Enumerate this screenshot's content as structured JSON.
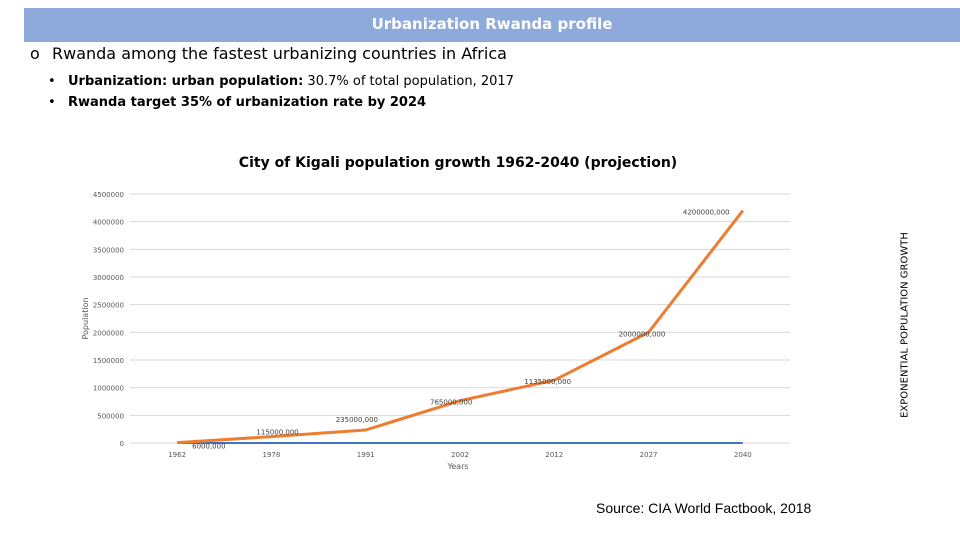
{
  "header": {
    "title": "Urbanization Rwanda profile"
  },
  "headline": {
    "marker": "o",
    "text": "Rwanda among the fastest urbanizing countries in Africa"
  },
  "bullets": [
    {
      "marker": "•",
      "strong": "Urbanization: urban population:",
      "text": " 30.7% of total population, 2017"
    },
    {
      "marker": "•",
      "strong": "Rwanda target 35% of urbanization rate by 2024",
      "text": ""
    }
  ],
  "side_label": "EXPONENTIAL POPULATION GROWTH",
  "source": "Source: CIA World Factbook, 2018",
  "chart_data": {
    "type": "line",
    "title": "City of Kigali population growth 1962-2040 (projection)",
    "xlabel": "Years",
    "ylabel": "Population",
    "categories": [
      "1962",
      "1978",
      "1991",
      "2002",
      "2012",
      "2027",
      "2040"
    ],
    "ylim": [
      0,
      4500000
    ],
    "yticks": [
      0,
      500000,
      1000000,
      1500000,
      2000000,
      2500000,
      3000000,
      3500000,
      4000000,
      4500000
    ],
    "ytick_labels": [
      "0",
      "500000",
      "1000000",
      "1500000",
      "2000000",
      "2500000",
      "3000000",
      "3500000",
      "4000000",
      "4500000"
    ],
    "grid": true,
    "series": [
      {
        "values": [
          6000,
          115000,
          235000,
          765000,
          1135000,
          2000000,
          4200000
        ],
        "labels": [
          "6000,000",
          "115000,000",
          "235000,000",
          "765000,000",
          "1135000,000",
          "2000000,000",
          "4200000,000"
        ],
        "color": "#ed7d31"
      },
      {
        "values": [
          0,
          0,
          0,
          0,
          0,
          0,
          0
        ],
        "color": "#4472c4"
      }
    ]
  }
}
